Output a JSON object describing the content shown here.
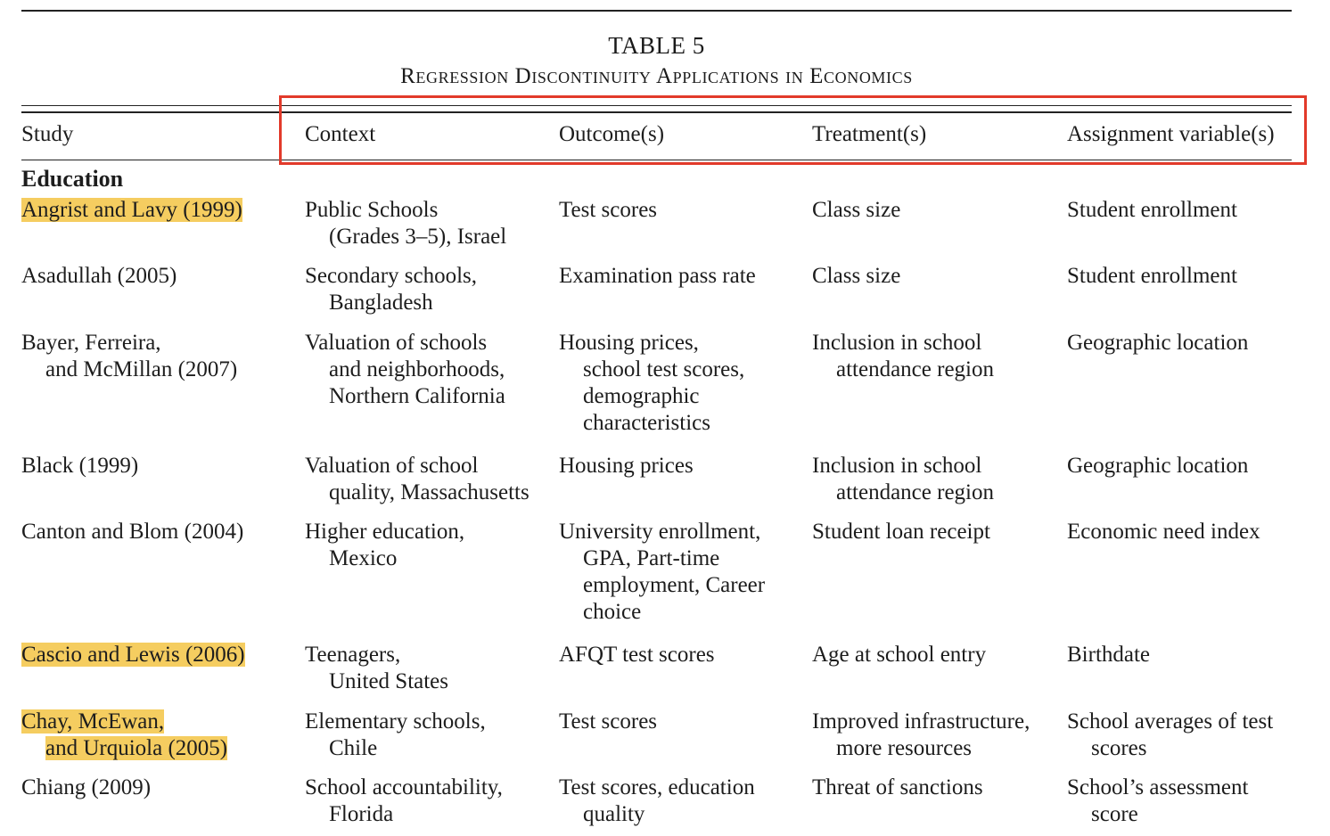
{
  "table": {
    "number": "TABLE 5",
    "caption": "Regression Discontinuity Applications in Economics",
    "headers": {
      "study": "Study",
      "context": "Context",
      "outcomes": "Outcome(s)",
      "treatments": "Treatment(s)",
      "assignment": "Assignment variable(s)"
    },
    "section": "Education",
    "highlight_color": "#f5cd60",
    "box_color": "#e23a2a",
    "rows": [
      {
        "study": [
          "Angrist and Lavy (1999)"
        ],
        "context": [
          "Public Schools",
          "(Grades 3–5), Israel"
        ],
        "outcome": [
          "Test scores"
        ],
        "treatment": [
          "Class size"
        ],
        "assignment": [
          "Student enrollment"
        ]
      },
      {
        "study": [
          "Asadullah (2005)"
        ],
        "context": [
          "Secondary schools,",
          "Bangladesh"
        ],
        "outcome": [
          "Examination pass rate"
        ],
        "treatment": [
          "Class size"
        ],
        "assignment": [
          "Student enrollment"
        ]
      },
      {
        "study": [
          "Bayer, Ferreira,",
          "and McMillan (2007)"
        ],
        "context": [
          "Valuation of schools",
          "and neighborhoods,",
          "Northern California"
        ],
        "outcome": [
          "Housing prices,",
          "school test scores,",
          "demographic",
          "characteristics"
        ],
        "treatment": [
          "Inclusion in school",
          "attendance region"
        ],
        "assignment": [
          "Geographic location"
        ]
      },
      {
        "study": [
          "Black (1999)"
        ],
        "context": [
          "Valuation of school",
          "quality, Massachusetts"
        ],
        "outcome": [
          "Housing prices"
        ],
        "treatment": [
          "Inclusion in school",
          "attendance region"
        ],
        "assignment": [
          "Geographic location"
        ]
      },
      {
        "study": [
          "Canton and Blom (2004)"
        ],
        "context": [
          "Higher education,",
          "Mexico"
        ],
        "outcome": [
          "University enrollment,",
          "GPA, Part-time",
          "employment, Career",
          "choice"
        ],
        "treatment": [
          "Student loan receipt"
        ],
        "assignment": [
          "Economic need index"
        ]
      },
      {
        "study": [
          "Cascio and Lewis (2006)"
        ],
        "context": [
          "Teenagers,",
          "United States"
        ],
        "outcome": [
          "AFQT test scores"
        ],
        "treatment": [
          "Age at school entry"
        ],
        "assignment": [
          "Birthdate"
        ]
      },
      {
        "study": [
          "Chay, McEwan,",
          "and Urquiola (2005)"
        ],
        "context": [
          "Elementary schools,",
          "Chile"
        ],
        "outcome": [
          "Test scores"
        ],
        "treatment": [
          "Improved infrastructure,",
          "more resources"
        ],
        "assignment": [
          "School averages of test",
          "scores"
        ]
      },
      {
        "study": [
          "Chiang (2009)"
        ],
        "context": [
          "School accountability,",
          "Florida"
        ],
        "outcome": [
          "Test scores, education",
          "quality"
        ],
        "treatment": [
          "Threat of sanctions"
        ],
        "assignment": [
          "School’s assessment",
          "score"
        ]
      }
    ]
  }
}
